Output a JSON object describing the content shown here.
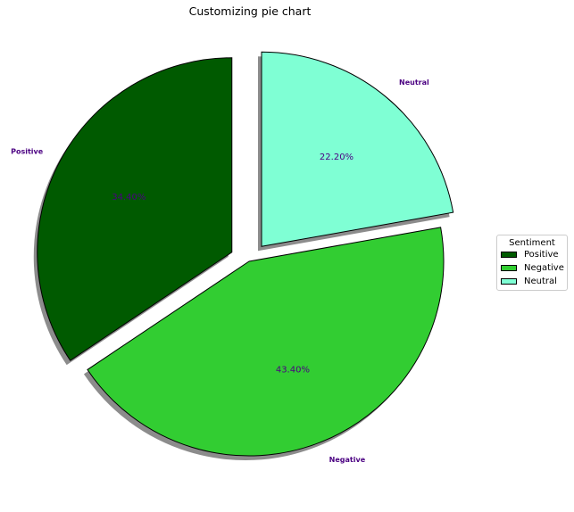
{
  "chart_data": {
    "type": "pie",
    "title": "Customizing pie chart",
    "slices": [
      {
        "label": "Positive",
        "value": 34.4,
        "pct_label": "34.40%",
        "color": "#005a00",
        "exploded": true
      },
      {
        "label": "Negative",
        "value": 43.4,
        "pct_label": "43.40%",
        "color": "#32cd32",
        "exploded": false
      },
      {
        "label": "Neutral",
        "value": 22.2,
        "pct_label": "22.20%",
        "color": "#7fffd4",
        "exploded": true
      }
    ],
    "label_color": "#4b0082",
    "start_angle_deg": 90,
    "shadow": true,
    "legend": {
      "title": "Sentiment",
      "placement": "center-right"
    }
  }
}
